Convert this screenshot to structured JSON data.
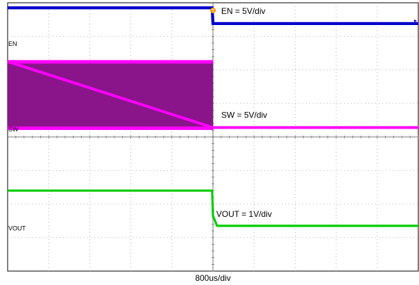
{
  "chart_data": {
    "type": "line",
    "title": "",
    "xlabel": "800us/div",
    "ylabel": "",
    "grid": true,
    "divisions": {
      "x": 10,
      "y": 8
    },
    "trigger_marker": "T",
    "x_unit": "div",
    "xlim": [
      0,
      10
    ],
    "series": [
      {
        "name": "EN",
        "annotation": "EN = 5V/div",
        "color": "#0000cc",
        "ground_div": 6.8,
        "noise_div": 0.04,
        "x": [
          0,
          4.98,
          5.0,
          10
        ],
        "y": [
          7.85,
          7.85,
          7.38,
          7.38
        ]
      },
      {
        "name": "SW",
        "annotation": "SW = 5V/div",
        "color": "#ff00ff",
        "ground_div": 4.25,
        "switching_band": {
          "x": [
            0,
            5.0
          ],
          "y": [
            4.25,
            6.25
          ]
        },
        "x": [
          0,
          5.0,
          5.02,
          10
        ],
        "y": [
          6.25,
          4.28,
          4.28,
          4.28
        ]
      },
      {
        "name": "VOUT",
        "annotation": "VOUT = 1V/div",
        "color": "#00cc00",
        "ground_div": 1.3,
        "noise_div": 0.03,
        "x": [
          0,
          4.98,
          5.0,
          5.1,
          10
        ],
        "y": [
          2.4,
          2.4,
          1.65,
          1.35,
          1.35
        ]
      }
    ]
  }
}
